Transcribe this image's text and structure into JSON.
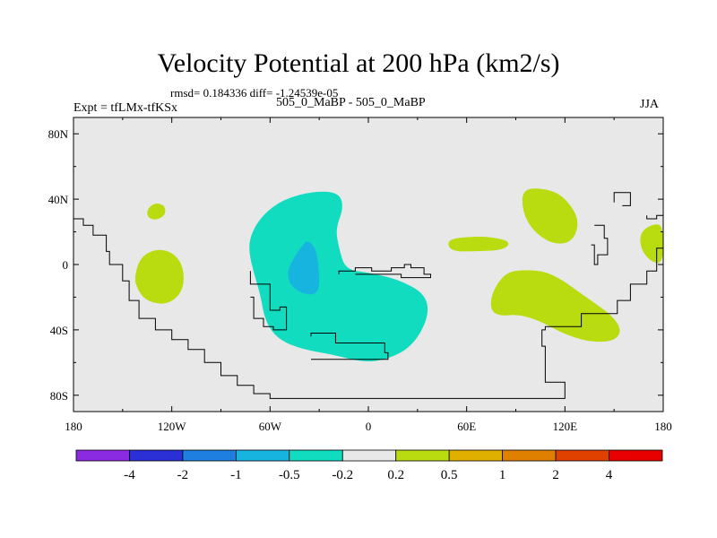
{
  "title": "Velocity Potential at 200 hPa (km2/s)",
  "stats": "rmsd= 0.184336 diff= -1.24539e-05",
  "left_label": "Expt = tfLMx-tfKSx",
  "center_label": "505_0_MaBP - 505_0_MaBP",
  "right_label": "JJA",
  "chart_data": {
    "type": "contour-map",
    "projection": "cylindrical-equidistant",
    "title": "Velocity Potential at 200 hPa (km2/s)",
    "subtitle": "505_0_MaBP - 505_0_MaBP",
    "xlim": [
      -180,
      180
    ],
    "ylim": [
      -90,
      90
    ],
    "x_ticks": [
      {
        "value": -180,
        "label": "180"
      },
      {
        "value": -120,
        "label": "120W"
      },
      {
        "value": -60,
        "label": "60W"
      },
      {
        "value": 0,
        "label": "0"
      },
      {
        "value": 60,
        "label": "60E"
      },
      {
        "value": 120,
        "label": "120E"
      },
      {
        "value": 180,
        "label": "180"
      }
    ],
    "y_ticks": [
      {
        "value": 80,
        "label": "80N"
      },
      {
        "value": 40,
        "label": "40N"
      },
      {
        "value": 0,
        "label": "0"
      },
      {
        "value": -40,
        "label": "40S"
      },
      {
        "value": -80,
        "label": "80S"
      }
    ],
    "levels": [
      "-4",
      "-2",
      "-1",
      "-0.5",
      "-0.2",
      "0.2",
      "0.5",
      "1",
      "2",
      "4"
    ],
    "colorbar_colors": [
      "#8a2be2",
      "#2a2fd6",
      "#1f7fe0",
      "#18b4e0",
      "#12dcc0",
      "#e8e8e8",
      "#b9dc10",
      "#e0b000",
      "#e08000",
      "#e04000",
      "#e80000"
    ],
    "background_color": "#e8e8e8",
    "regions": [
      {
        "name": "east-pacific-positive",
        "bin": "0.2 to 0.5",
        "color": "#b9dc10",
        "points": [
          [
            -143,
            -8
          ],
          [
            -139,
            5
          ],
          [
            -128,
            10
          ],
          [
            -117,
            6
          ],
          [
            -112,
            -5
          ],
          [
            -114,
            -18
          ],
          [
            -124,
            -25
          ],
          [
            -136,
            -22
          ],
          [
            -141,
            -15
          ]
        ]
      },
      {
        "name": "central-pacific-small-positive",
        "bin": "0.2 to 0.5",
        "color": "#b9dc10",
        "points": [
          [
            -135,
            34
          ],
          [
            -130,
            38
          ],
          [
            -124,
            36
          ],
          [
            -124,
            30
          ],
          [
            -130,
            27
          ],
          [
            -135,
            29
          ]
        ]
      },
      {
        "name": "americas-atlantic-negative",
        "bin": "-0.5 to -0.2",
        "color": "#12dcc0",
        "points": [
          [
            -72,
            18
          ],
          [
            -65,
            30
          ],
          [
            -52,
            40
          ],
          [
            -33,
            45
          ],
          [
            -18,
            44
          ],
          [
            -15,
            35
          ],
          [
            -20,
            22
          ],
          [
            -18,
            10
          ],
          [
            -14,
            -3
          ],
          [
            0,
            -5
          ],
          [
            18,
            -9
          ],
          [
            35,
            -18
          ],
          [
            37,
            -32
          ],
          [
            27,
            -50
          ],
          [
            12,
            -58
          ],
          [
            -3,
            -60
          ],
          [
            -22,
            -55
          ],
          [
            -40,
            -52
          ],
          [
            -55,
            -46
          ],
          [
            -63,
            -35
          ],
          [
            -66,
            -18
          ],
          [
            -70,
            -5
          ],
          [
            -73,
            8
          ]
        ]
      },
      {
        "name": "south-america-core-negative",
        "bin": "-1 to -0.5",
        "color": "#18b4e0",
        "points": [
          [
            -37,
            15
          ],
          [
            -32,
            10
          ],
          [
            -30,
            -3
          ],
          [
            -30,
            -17
          ],
          [
            -37,
            -19
          ],
          [
            -47,
            -14
          ],
          [
            -50,
            -5
          ],
          [
            -45,
            5
          ],
          [
            -40,
            12
          ]
        ]
      },
      {
        "name": "arabia-small-positive",
        "bin": "0.2 to 0.5",
        "color": "#b9dc10",
        "points": [
          [
            48,
            15
          ],
          [
            60,
            17
          ],
          [
            75,
            17
          ],
          [
            87,
            14
          ],
          [
            83,
            9
          ],
          [
            67,
            8
          ],
          [
            50,
            8
          ]
        ]
      },
      {
        "name": "east-asia-positive",
        "bin": "0.2 to 0.5",
        "color": "#b9dc10",
        "points": [
          [
            94,
            47
          ],
          [
            111,
            46
          ],
          [
            121,
            40
          ],
          [
            129,
            27
          ],
          [
            125,
            14
          ],
          [
            113,
            12
          ],
          [
            101,
            20
          ],
          [
            94,
            32
          ]
        ]
      },
      {
        "name": "indian-ocean-positive",
        "bin": "0.2 to 0.5",
        "color": "#b9dc10",
        "points": [
          [
            74,
            -20
          ],
          [
            83,
            -5
          ],
          [
            96,
            -3
          ],
          [
            112,
            -5
          ],
          [
            133,
            -20
          ],
          [
            150,
            -32
          ],
          [
            155,
            -42
          ],
          [
            147,
            -48
          ],
          [
            126,
            -46
          ],
          [
            96,
            -30
          ],
          [
            76,
            -32
          ]
        ]
      },
      {
        "name": "pacific-east-edge-positive",
        "bin": "0.2 to 0.5",
        "color": "#b9dc10",
        "points": [
          [
            166,
            20
          ],
          [
            174,
            25
          ],
          [
            180,
            24
          ],
          [
            180,
            0
          ],
          [
            172,
            2
          ],
          [
            166,
            10
          ]
        ]
      }
    ],
    "outlines": [
      [
        [
          -180,
          30
        ],
        [
          -174,
          28
        ],
        [
          -168,
          24
        ],
        [
          -166,
          18
        ],
        [
          -160,
          18
        ],
        [
          -158,
          8
        ],
        [
          -150,
          0
        ],
        [
          -146,
          -10
        ],
        [
          -140,
          -22
        ],
        [
          -130,
          -33
        ],
        [
          -120,
          -40
        ],
        [
          -110,
          -46
        ],
        [
          -100,
          -52
        ],
        [
          -90,
          -60
        ],
        [
          -80,
          -68
        ],
        [
          -70,
          -74
        ],
        [
          -60,
          -79
        ],
        [
          -50,
          -82
        ],
        [
          -40,
          -82
        ],
        [
          30,
          -82
        ],
        [
          90,
          -82
        ],
        [
          120,
          -82
        ],
        [
          120,
          -74
        ],
        [
          108,
          -72
        ],
        [
          106,
          -50
        ],
        [
          108,
          -40
        ],
        [
          130,
          -38
        ],
        [
          152,
          -30
        ],
        [
          160,
          -22
        ],
        [
          170,
          -12
        ],
        [
          176,
          -4
        ],
        [
          180,
          10
        ]
      ],
      [
        [
          -72,
          -4
        ],
        [
          -68,
          -12
        ],
        [
          -60,
          -12
        ],
        [
          -60,
          -20
        ],
        [
          -54,
          -28
        ],
        [
          -50,
          -26
        ],
        [
          -50,
          -36
        ],
        [
          -58,
          -40
        ],
        [
          -64,
          -38
        ],
        [
          -70,
          -33
        ],
        [
          -72,
          -20
        ]
      ],
      [
        [
          -35,
          -44
        ],
        [
          -20,
          -42
        ],
        [
          -10,
          -48
        ],
        [
          10,
          -48
        ],
        [
          12,
          -54
        ],
        [
          -3,
          -58
        ],
        [
          -35,
          -58
        ]
      ],
      [
        [
          -18,
          -6
        ],
        [
          -8,
          -4
        ],
        [
          2,
          -2
        ],
        [
          14,
          -4
        ],
        [
          22,
          -2
        ],
        [
          26,
          0
        ],
        [
          34,
          -2
        ],
        [
          38,
          -6
        ],
        [
          32,
          -8
        ],
        [
          20,
          -8
        ],
        [
          6,
          -6
        ],
        [
          -8,
          -6
        ]
      ],
      [
        [
          150,
          38
        ],
        [
          150,
          44
        ],
        [
          160,
          44
        ],
        [
          160,
          38
        ],
        [
          155,
          36
        ]
      ],
      [
        [
          138,
          24
        ],
        [
          144,
          24
        ],
        [
          146,
          16
        ],
        [
          140,
          6
        ],
        [
          138,
          0
        ],
        [
          136,
          12
        ]
      ],
      [
        [
          170,
          30
        ],
        [
          176,
          28
        ],
        [
          180,
          30
        ]
      ]
    ]
  }
}
